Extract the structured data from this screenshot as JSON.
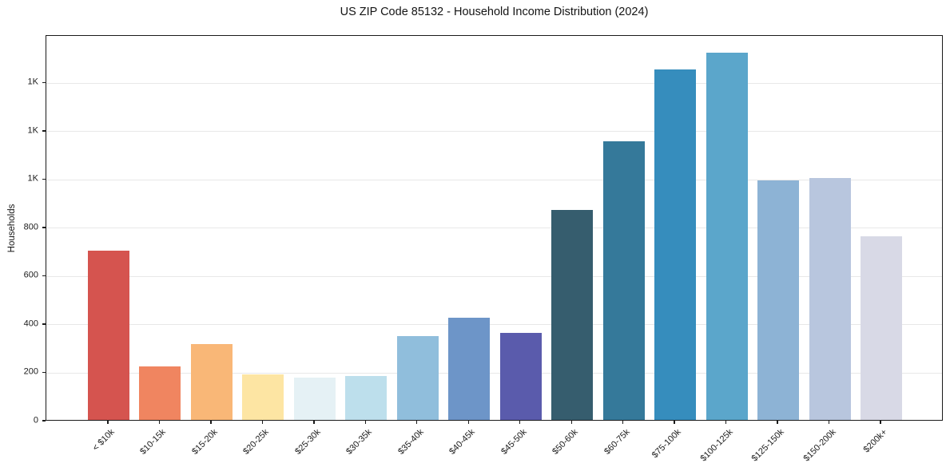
{
  "chart_data": {
    "type": "bar",
    "title": "US ZIP Code 85132 - Household Income Distribution (2024)",
    "xlabel": "",
    "ylabel": "Households",
    "categories": [
      "< $10k",
      "$10-15k",
      "$15-20k",
      "$20-25k",
      "$25-30k",
      "$30-35k",
      "$35-40k",
      "$40-45k",
      "$45-50k",
      "$50-60k",
      "$60-75k",
      "$75-100k",
      "$100-125k",
      "$125-150k",
      "$150-200k",
      "$200k+"
    ],
    "values": [
      700,
      222,
      314,
      188,
      174,
      182,
      347,
      424,
      360,
      868,
      1153,
      1451,
      1520,
      991,
      1000,
      760
    ],
    "bar_colors": [
      "#d5544f",
      "#f08560",
      "#f9b777",
      "#fde5a3",
      "#e5f1f5",
      "#bddfec",
      "#90bedc",
      "#6d95c8",
      "#5a5bac",
      "#365d6e",
      "#35799a",
      "#368dbd",
      "#5ba6cb",
      "#8db3d5",
      "#b8c6de",
      "#d8d9e6"
    ],
    "ylim": [
      0,
      1596
    ],
    "yticks": [
      {
        "value": 0,
        "label": "0"
      },
      {
        "value": 200,
        "label": "200"
      },
      {
        "value": 400,
        "label": "400"
      },
      {
        "value": 600,
        "label": "600"
      },
      {
        "value": 800,
        "label": "800"
      },
      {
        "value": 1000,
        "label": "1K"
      },
      {
        "value": 1200,
        "label": "1K"
      },
      {
        "value": 1400,
        "label": "1K"
      }
    ],
    "grid": "horizontal",
    "legend": null
  },
  "colors": {
    "background": "#ffffff",
    "grid": "#e8e8e8",
    "spine": "#1a1a1a",
    "tick": "#1a1a1a",
    "text": "#141414"
  }
}
